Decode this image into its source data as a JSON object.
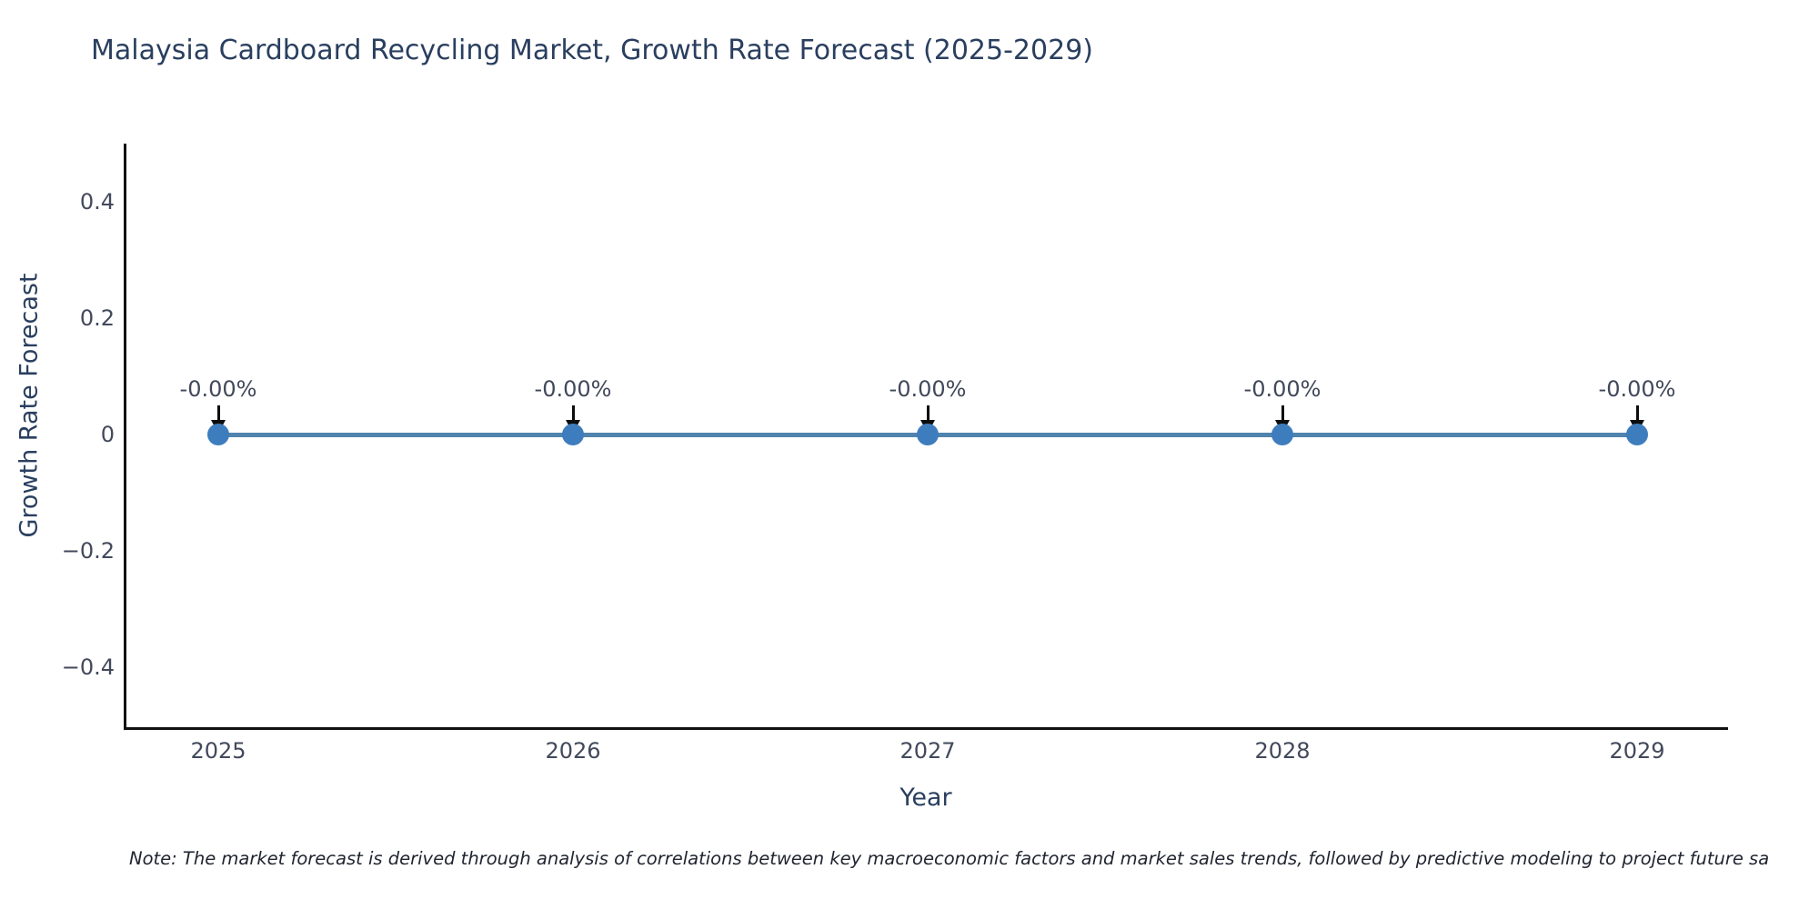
{
  "title": "Malaysia Cardboard Recycling Market, Growth Rate Forecast (2025-2029)",
  "note": "Note: The market forecast is derived through analysis of correlations between key macroeconomic factors and market sales trends, followed by predictive modeling to project future sa",
  "chart_data": {
    "type": "line",
    "title": "Malaysia Cardboard Recycling Market, Growth Rate Forecast (2025-2029)",
    "xlabel": "Year",
    "ylabel": "Growth Rate Forecast",
    "x": [
      2025,
      2026,
      2027,
      2028,
      2029
    ],
    "series": [
      {
        "name": "Growth Rate Forecast",
        "values": [
          0,
          0,
          0,
          0,
          0
        ]
      }
    ],
    "point_labels": [
      "-0.00%",
      "-0.00%",
      "-0.00%",
      "-0.00%",
      "-0.00%"
    ],
    "ylim": [
      -0.5,
      0.5
    ],
    "yticks": [
      "0.4",
      "0.2",
      "0",
      "−0.2",
      "−0.4"
    ],
    "xticks": [
      "2025",
      "2026",
      "2027",
      "2028",
      "2029"
    ],
    "grid": false,
    "legend_position": "none",
    "annotation_style": "black arrow pointing down to each marker",
    "colors": {
      "line": "#5183ad",
      "marker": "#3e7dbd",
      "axis": "#111111",
      "title_text": "#2a3f5f",
      "tick_text": "#42495b",
      "annotation_text": "#42495b",
      "background": "#ffffff"
    }
  }
}
